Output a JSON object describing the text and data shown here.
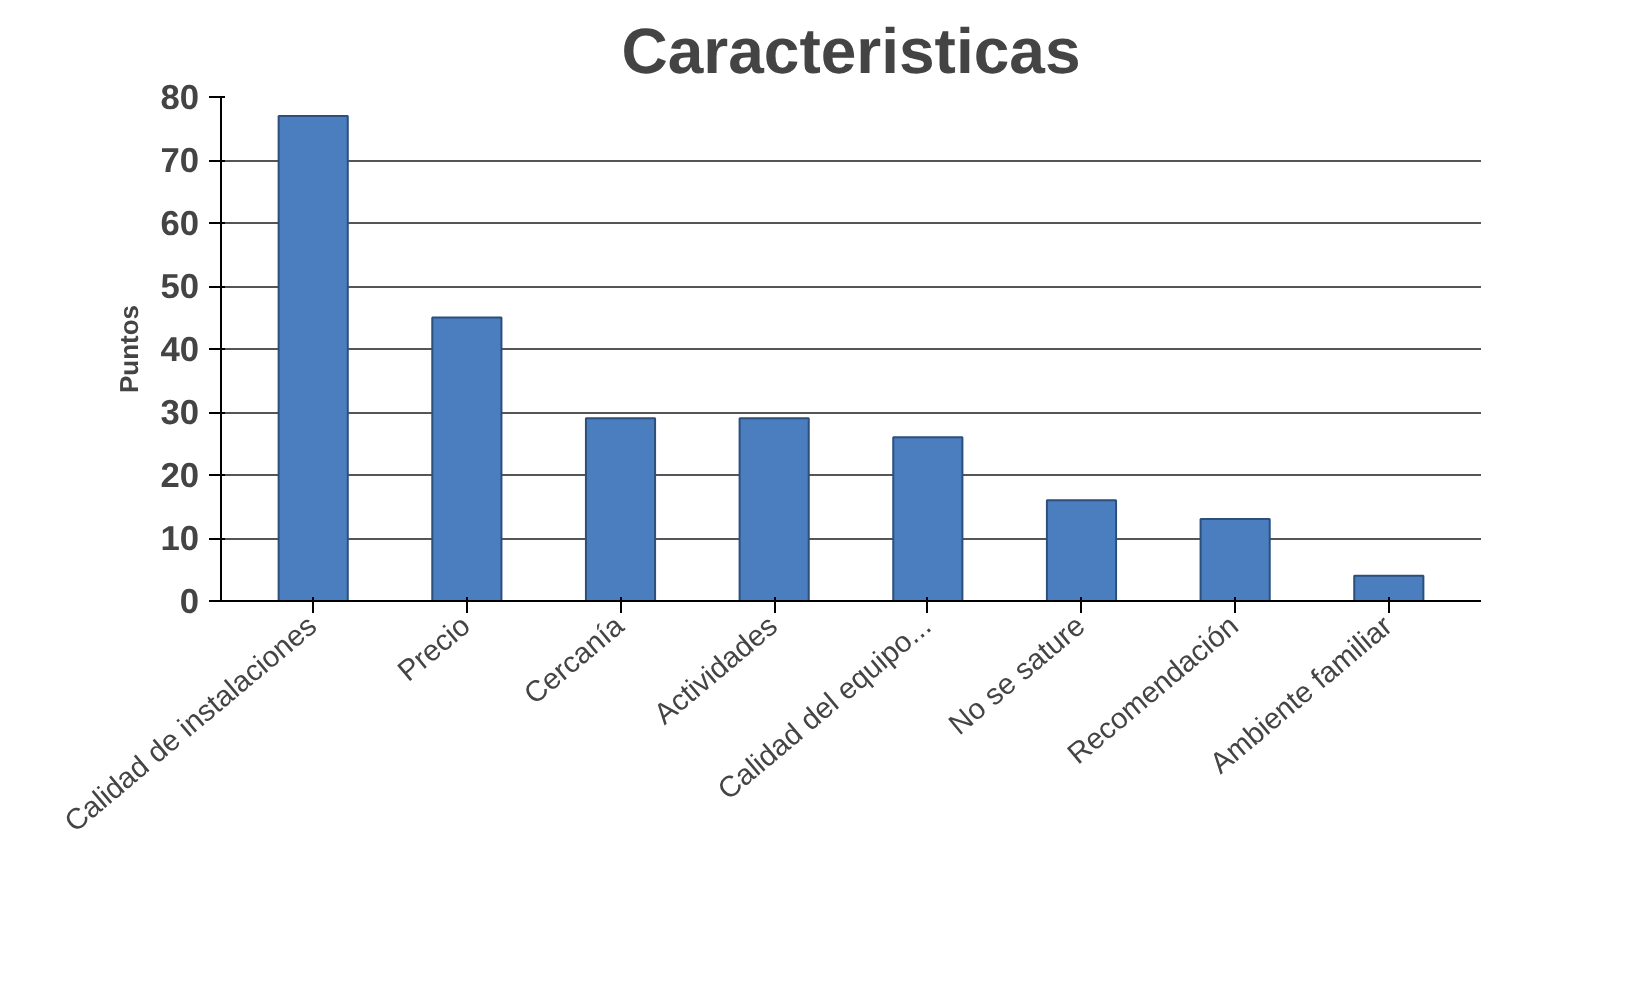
{
  "chart_data": {
    "type": "bar",
    "title": "Caracteristicas",
    "ylabel": "Puntos",
    "categories": [
      "Calidad de instalaciones",
      "Precio",
      "Cercanía",
      "Actividades",
      "Calidad del equipo...",
      "No se sature",
      "Recomendación",
      "Ambiente familiar"
    ],
    "values": [
      77,
      45,
      29,
      29,
      26,
      16,
      13,
      4
    ],
    "color": "#4a7ebf",
    "ylim": [
      0,
      80
    ],
    "yticks": [
      0,
      10,
      20,
      30,
      40,
      50,
      60,
      70,
      80
    ],
    "grid": "y"
  }
}
